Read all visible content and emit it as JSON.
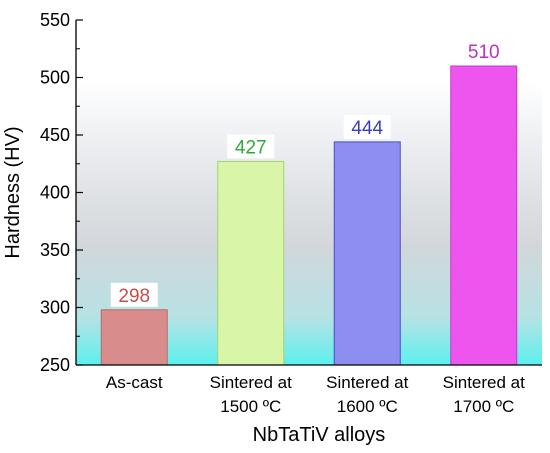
{
  "chart_data": {
    "type": "bar",
    "title": "",
    "xlabel": "NbTaTiV alloys",
    "ylabel": "Hardness (HV)",
    "ylim": [
      250,
      550
    ],
    "yticks": [
      250,
      300,
      350,
      400,
      450,
      500,
      550
    ],
    "grid": false,
    "categories": [
      [
        "As-cast"
      ],
      [
        "Sintered at",
        "1500 ºC"
      ],
      [
        "Sintered at",
        "1600 ºC"
      ],
      [
        "Sintered at",
        "1700 ºC"
      ]
    ],
    "values": [
      298,
      427,
      444,
      510
    ],
    "data_labels": [
      "298",
      "427",
      "444",
      "510"
    ],
    "bar_colors": [
      "#d98c8c",
      "#d8f5a8",
      "#8e8ef0",
      "#ee55ee"
    ],
    "bar_edge_colors": [
      "#b86a6a",
      "#9fd66a",
      "#4b4bc8",
      "#c23cc2"
    ],
    "label_colors": [
      "#c0504d",
      "#2eaa3c",
      "#3c3cc0",
      "#c030c0"
    ],
    "background_gradient": [
      "#ffffff",
      "#ffffff",
      "#eceef1",
      "#d3d6da",
      "#b7e2e4",
      "#5cf0ee"
    ]
  }
}
